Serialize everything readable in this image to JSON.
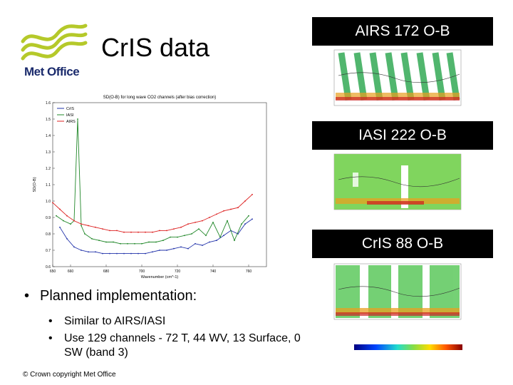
{
  "slide": {
    "title": "CrIS data",
    "logo_text": "Met Office",
    "footer": "© Crown copyright   Met Office",
    "bullets": {
      "main": "Planned implementation:",
      "sub": [
        "Similar to AIRS/IASI",
        "Use 129 channels - 72 T, 44 WV, 13 Surface, 0 SW (band 3)"
      ]
    }
  },
  "maps": [
    {
      "label": "AIRS 172 O-B"
    },
    {
      "label": "IASI 222 O-B"
    },
    {
      "label": "CrIS 88 O-B"
    }
  ],
  "colors": {
    "logo_green": "#b5c92a",
    "logo_navy": "#1a2a6c",
    "label_bg": "#000000",
    "cris": "#2233aa",
    "iasi": "#22882a",
    "airs": "#dd2222"
  },
  "chart_data": {
    "type": "line",
    "title": "SD(O-B) for long wave CO2 channels (after bias correction)",
    "xlabel": "Wavenumber (cm^-1)",
    "ylabel": "SD(O-B)",
    "xlim": [
      650,
      770
    ],
    "ylim": [
      0.6,
      1.6
    ],
    "xticks": [
      650,
      660,
      680,
      700,
      720,
      740,
      760
    ],
    "yticks": [
      0.6,
      0.7,
      0.8,
      0.9,
      1.0,
      1.1,
      1.2,
      1.3,
      1.4,
      1.5,
      1.6
    ],
    "legend_position": "top-left",
    "series": [
      {
        "name": "CrIS",
        "color": "#2233aa",
        "x": [
          654,
          658,
          662,
          666,
          670,
          674,
          678,
          682,
          686,
          690,
          694,
          698,
          702,
          706,
          710,
          714,
          718,
          722,
          726,
          730,
          734,
          738,
          742,
          746,
          750,
          754,
          758,
          762
        ],
        "y": [
          0.84,
          0.77,
          0.72,
          0.7,
          0.69,
          0.69,
          0.68,
          0.68,
          0.68,
          0.68,
          0.68,
          0.68,
          0.68,
          0.69,
          0.7,
          0.7,
          0.71,
          0.72,
          0.71,
          0.74,
          0.73,
          0.75,
          0.76,
          0.79,
          0.82,
          0.8,
          0.86,
          0.89
        ]
      },
      {
        "name": "IASI",
        "color": "#22882a",
        "x": [
          652,
          656,
          660,
          662,
          664,
          666,
          668,
          672,
          676,
          680,
          684,
          688,
          692,
          696,
          700,
          704,
          708,
          712,
          716,
          720,
          724,
          728,
          732,
          736,
          740,
          744,
          748,
          752,
          756,
          760
        ],
        "y": [
          0.91,
          0.88,
          0.86,
          0.88,
          1.5,
          0.85,
          0.8,
          0.77,
          0.76,
          0.75,
          0.75,
          0.74,
          0.74,
          0.74,
          0.74,
          0.75,
          0.75,
          0.76,
          0.78,
          0.78,
          0.79,
          0.8,
          0.83,
          0.79,
          0.87,
          0.78,
          0.88,
          0.76,
          0.86,
          0.91
        ]
      },
      {
        "name": "AIRS",
        "color": "#dd2222",
        "x": [
          650,
          654,
          658,
          662,
          666,
          670,
          674,
          678,
          682,
          686,
          690,
          694,
          698,
          702,
          706,
          710,
          714,
          718,
          722,
          726,
          730,
          734,
          738,
          742,
          746,
          750,
          754,
          758,
          762
        ],
        "y": [
          0.99,
          0.95,
          0.91,
          0.88,
          0.86,
          0.85,
          0.84,
          0.83,
          0.82,
          0.82,
          0.81,
          0.81,
          0.81,
          0.81,
          0.81,
          0.82,
          0.82,
          0.83,
          0.84,
          0.86,
          0.87,
          0.88,
          0.9,
          0.92,
          0.94,
          0.95,
          0.96,
          1.0,
          1.04
        ]
      }
    ]
  }
}
